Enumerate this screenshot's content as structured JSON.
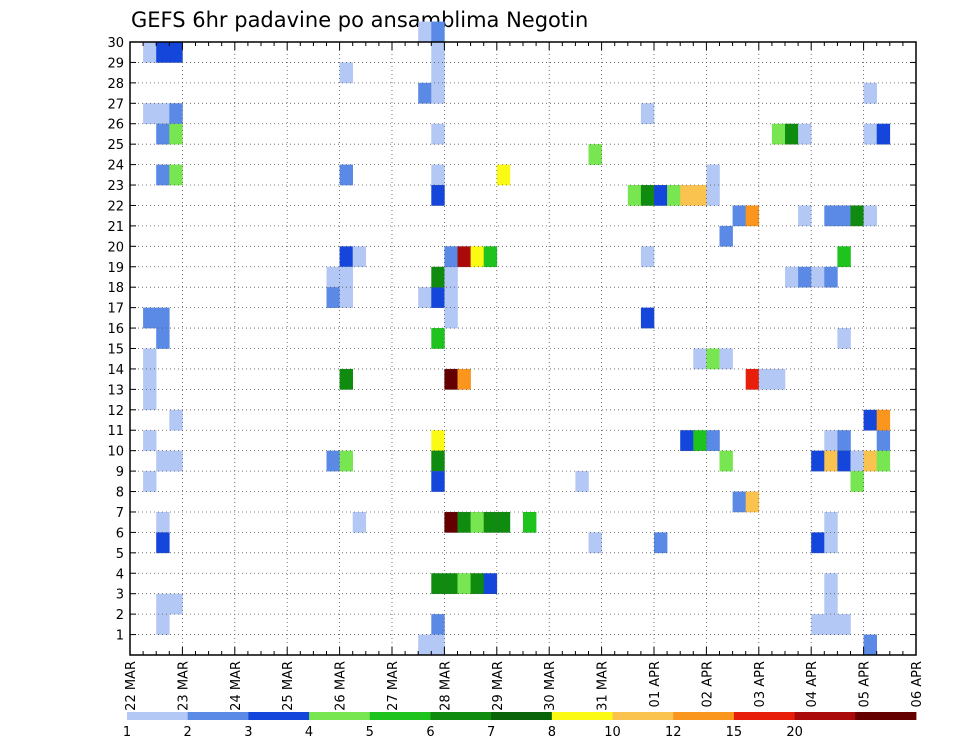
{
  "chart_data": {
    "type": "heatmap",
    "title": "GEFS 6hr padavine po ansamblima Negotin",
    "x_tick_labels": [
      "22 MAR",
      "23 MAR",
      "24 MAR",
      "25 MAR",
      "26 MAR",
      "27 MAR",
      "28 MAR",
      "29 MAR",
      "30 MAR",
      "31 MAR",
      "01 APR",
      "02 APR",
      "03 APR",
      "04 APR",
      "05 APR",
      "06 APR"
    ],
    "y_tick_labels": [
      "1",
      "2",
      "3",
      "4",
      "5",
      "6",
      "7",
      "8",
      "9",
      "10",
      "11",
      "12",
      "13",
      "14",
      "15",
      "16",
      "17",
      "18",
      "19",
      "20",
      "21",
      "22",
      "23",
      "24",
      "25",
      "26",
      "27",
      "28",
      "29",
      "30"
    ],
    "ylim": [
      0,
      30
    ],
    "x_steps_per_day": 4,
    "grid": true,
    "colorbar": {
      "labels": [
        "1",
        "2",
        "3",
        "4",
        "5",
        "6",
        "7",
        "8",
        "10",
        "12",
        "15",
        "20"
      ],
      "colors": [
        "#b4c8f5",
        "#5a8ae6",
        "#1446dc",
        "#78e650",
        "#1ec31e",
        "#0f8c0f",
        "#0a640a",
        "#fafa14",
        "#fac350",
        "#fa961e",
        "#e61e0a",
        "#aa0a0a",
        "#640000"
      ]
    },
    "cells": [
      [
        1,
        29,
        0
      ],
      [
        2,
        29,
        2
      ],
      [
        3,
        29,
        2
      ],
      [
        1,
        26,
        0
      ],
      [
        2,
        26,
        0
      ],
      [
        3,
        26,
        1
      ],
      [
        2,
        25,
        1
      ],
      [
        3,
        25,
        3
      ],
      [
        2,
        23,
        1
      ],
      [
        3,
        23,
        3
      ],
      [
        1,
        16,
        1
      ],
      [
        2,
        16,
        1
      ],
      [
        2,
        15,
        1
      ],
      [
        1,
        14,
        0
      ],
      [
        1,
        13,
        0
      ],
      [
        1,
        12,
        0
      ],
      [
        3,
        11,
        0
      ],
      [
        1,
        10,
        0
      ],
      [
        2,
        9,
        0
      ],
      [
        3,
        9,
        0
      ],
      [
        1,
        8,
        0
      ],
      [
        2,
        6,
        0
      ],
      [
        2,
        5,
        2
      ],
      [
        2,
        2,
        0
      ],
      [
        3,
        2,
        0
      ],
      [
        2,
        1,
        0
      ],
      [
        16,
        28,
        0
      ],
      [
        16,
        23,
        1
      ],
      [
        16,
        19,
        2
      ],
      [
        17,
        19,
        0
      ],
      [
        15,
        18,
        0
      ],
      [
        16,
        18,
        0
      ],
      [
        15,
        17,
        1
      ],
      [
        16,
        17,
        0
      ],
      [
        16,
        13,
        5
      ],
      [
        15,
        9,
        1
      ],
      [
        16,
        9,
        3
      ],
      [
        17,
        6,
        0
      ],
      [
        22,
        30,
        0
      ],
      [
        23,
        30,
        1
      ],
      [
        23,
        29,
        0
      ],
      [
        23,
        28,
        0
      ],
      [
        22,
        27,
        1
      ],
      [
        23,
        27,
        0
      ],
      [
        23,
        25,
        0
      ],
      [
        23,
        23,
        0
      ],
      [
        23,
        22,
        2
      ],
      [
        22,
        17,
        0
      ],
      [
        23,
        17,
        2
      ],
      [
        24,
        17,
        0
      ],
      [
        24,
        16,
        0
      ],
      [
        23,
        18,
        5
      ],
      [
        24,
        18,
        0
      ],
      [
        23,
        15,
        4
      ],
      [
        23,
        10,
        7
      ],
      [
        23,
        9,
        5
      ],
      [
        23,
        8,
        2
      ],
      [
        22,
        0,
        0
      ],
      [
        23,
        1,
        1
      ],
      [
        23,
        0,
        0
      ],
      [
        24,
        19,
        1
      ],
      [
        25,
        19,
        11
      ],
      [
        26,
        19,
        7
      ],
      [
        27,
        19,
        4
      ],
      [
        24,
        13,
        12
      ],
      [
        25,
        13,
        9
      ],
      [
        24,
        6,
        12
      ],
      [
        25,
        6,
        5
      ],
      [
        26,
        6,
        3
      ],
      [
        27,
        6,
        5
      ],
      [
        28,
        6,
        5
      ],
      [
        30,
        6,
        4
      ],
      [
        23,
        3,
        5
      ],
      [
        24,
        3,
        5
      ],
      [
        25,
        3,
        3
      ],
      [
        26,
        3,
        5
      ],
      [
        27,
        3,
        2
      ],
      [
        28,
        23,
        7
      ],
      [
        35,
        24,
        3
      ],
      [
        34,
        8,
        0
      ],
      [
        35,
        5,
        0
      ],
      [
        38,
        22,
        3
      ],
      [
        39,
        22,
        5
      ],
      [
        40,
        22,
        2
      ],
      [
        41,
        22,
        3
      ],
      [
        42,
        22,
        8
      ],
      [
        43,
        22,
        8
      ],
      [
        44,
        22,
        0
      ],
      [
        44,
        23,
        0
      ],
      [
        39,
        26,
        0
      ],
      [
        39,
        19,
        0
      ],
      [
        39,
        16,
        2
      ],
      [
        40,
        5,
        1
      ],
      [
        43,
        14,
        0
      ],
      [
        44,
        14,
        3
      ],
      [
        45,
        14,
        0
      ],
      [
        42,
        10,
        2
      ],
      [
        43,
        10,
        4
      ],
      [
        44,
        10,
        1
      ],
      [
        45,
        9,
        3
      ],
      [
        46,
        21,
        1
      ],
      [
        47,
        21,
        9
      ],
      [
        45,
        20,
        1
      ],
      [
        46,
        7,
        1
      ],
      [
        47,
        7,
        8
      ],
      [
        47,
        13,
        10
      ],
      [
        48,
        13,
        0
      ],
      [
        49,
        13,
        0
      ],
      [
        51,
        21,
        0
      ],
      [
        49,
        25,
        3
      ],
      [
        50,
        25,
        5
      ],
      [
        51,
        25,
        0
      ],
      [
        50,
        18,
        0
      ],
      [
        51,
        18,
        1
      ],
      [
        52,
        18,
        0
      ],
      [
        53,
        18,
        1
      ],
      [
        53,
        21,
        1
      ],
      [
        54,
        21,
        1
      ],
      [
        55,
        21,
        5
      ],
      [
        56,
        21,
        0
      ],
      [
        54,
        19,
        4
      ],
      [
        56,
        25,
        0
      ],
      [
        57,
        25,
        2
      ],
      [
        56,
        27,
        0
      ],
      [
        54,
        15,
        0
      ],
      [
        53,
        10,
        0
      ],
      [
        54,
        10,
        1
      ],
      [
        57,
        10,
        1
      ],
      [
        52,
        9,
        2
      ],
      [
        53,
        9,
        8
      ],
      [
        54,
        9,
        2
      ],
      [
        55,
        9,
        0
      ],
      [
        56,
        9,
        8
      ],
      [
        57,
        9,
        3
      ],
      [
        56,
        11,
        2
      ],
      [
        57,
        11,
        9
      ],
      [
        55,
        8,
        3
      ],
      [
        53,
        6,
        0
      ],
      [
        52,
        5,
        2
      ],
      [
        53,
        5,
        0
      ],
      [
        53,
        3,
        0
      ],
      [
        53,
        2,
        0
      ],
      [
        53,
        1,
        0
      ],
      [
        52,
        1,
        0
      ],
      [
        54,
        1,
        0
      ],
      [
        56,
        0,
        1
      ]
    ]
  }
}
